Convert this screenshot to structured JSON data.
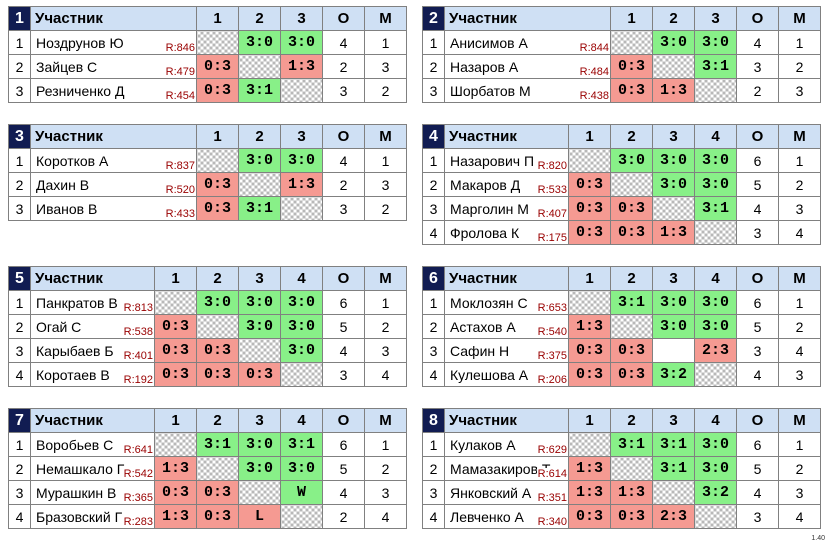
{
  "columns": {
    "participant": "Участник",
    "points": "О",
    "place": "М"
  },
  "version": "1.40",
  "groups": [
    {
      "num": "1",
      "headers": [
        "1",
        "2",
        "3"
      ],
      "rows": [
        {
          "n": "1",
          "name": "Ноздрунов Ю",
          "rating": "R:846",
          "cells": [
            {
              "t": "",
              "k": "x"
            },
            {
              "t": "3:0",
              "k": "w"
            },
            {
              "t": "3:0",
              "k": "w"
            }
          ],
          "o": "4",
          "m": "1"
        },
        {
          "n": "2",
          "name": "Зайцев С",
          "rating": "R:479",
          "cells": [
            {
              "t": "0:3",
              "k": "l"
            },
            {
              "t": "",
              "k": "x"
            },
            {
              "t": "1:3",
              "k": "l"
            }
          ],
          "o": "2",
          "m": "3"
        },
        {
          "n": "3",
          "name": "Резниченко Д",
          "rating": "R:454",
          "cells": [
            {
              "t": "0:3",
              "k": "l"
            },
            {
              "t": "3:1",
              "k": "w"
            },
            {
              "t": "",
              "k": "x"
            }
          ],
          "o": "3",
          "m": "2"
        }
      ]
    },
    {
      "num": "2",
      "headers": [
        "1",
        "2",
        "3"
      ],
      "rows": [
        {
          "n": "1",
          "name": "Анисимов А",
          "rating": "R:844",
          "cells": [
            {
              "t": "",
              "k": "x"
            },
            {
              "t": "3:0",
              "k": "w"
            },
            {
              "t": "3:0",
              "k": "w"
            }
          ],
          "o": "4",
          "m": "1"
        },
        {
          "n": "2",
          "name": "Назаров А",
          "rating": "R:484",
          "cells": [
            {
              "t": "0:3",
              "k": "l"
            },
            {
              "t": "",
              "k": "x"
            },
            {
              "t": "3:1",
              "k": "w"
            }
          ],
          "o": "3",
          "m": "2"
        },
        {
          "n": "3",
          "name": "Шорбатов М",
          "rating": "R:438",
          "cells": [
            {
              "t": "0:3",
              "k": "l"
            },
            {
              "t": "1:3",
              "k": "l"
            },
            {
              "t": "",
              "k": "x"
            }
          ],
          "o": "2",
          "m": "3"
        }
      ]
    },
    {
      "num": "3",
      "headers": [
        "1",
        "2",
        "3"
      ],
      "rows": [
        {
          "n": "1",
          "name": "Коротков А",
          "rating": "R:837",
          "cells": [
            {
              "t": "",
              "k": "x"
            },
            {
              "t": "3:0",
              "k": "w"
            },
            {
              "t": "3:0",
              "k": "w"
            }
          ],
          "o": "4",
          "m": "1"
        },
        {
          "n": "2",
          "name": "Дахин В",
          "rating": "R:520",
          "cells": [
            {
              "t": "0:3",
              "k": "l"
            },
            {
              "t": "",
              "k": "x"
            },
            {
              "t": "1:3",
              "k": "l"
            }
          ],
          "o": "2",
          "m": "3"
        },
        {
          "n": "3",
          "name": "Иванов В",
          "rating": "R:433",
          "cells": [
            {
              "t": "0:3",
              "k": "l"
            },
            {
              "t": "3:1",
              "k": "w"
            },
            {
              "t": "",
              "k": "x"
            }
          ],
          "o": "3",
          "m": "2"
        }
      ]
    },
    {
      "num": "4",
      "headers": [
        "1",
        "2",
        "3",
        "4"
      ],
      "rows": [
        {
          "n": "1",
          "name": "Назарович П",
          "rating": "R:820",
          "cells": [
            {
              "t": "",
              "k": "x"
            },
            {
              "t": "3:0",
              "k": "w"
            },
            {
              "t": "3:0",
              "k": "w"
            },
            {
              "t": "3:0",
              "k": "w"
            }
          ],
          "o": "6",
          "m": "1"
        },
        {
          "n": "2",
          "name": "Макаров Д",
          "rating": "R:533",
          "cells": [
            {
              "t": "0:3",
              "k": "l"
            },
            {
              "t": "",
              "k": "x"
            },
            {
              "t": "3:0",
              "k": "w"
            },
            {
              "t": "3:0",
              "k": "w"
            }
          ],
          "o": "5",
          "m": "2"
        },
        {
          "n": "3",
          "name": "Марголин М",
          "rating": "R:407",
          "cells": [
            {
              "t": "0:3",
              "k": "l"
            },
            {
              "t": "0:3",
              "k": "l"
            },
            {
              "t": "",
              "k": "x"
            },
            {
              "t": "3:1",
              "k": "w"
            }
          ],
          "o": "4",
          "m": "3"
        },
        {
          "n": "4",
          "name": "Фролова К",
          "rating": "R:175",
          "cells": [
            {
              "t": "0:3",
              "k": "l"
            },
            {
              "t": "0:3",
              "k": "l"
            },
            {
              "t": "1:3",
              "k": "l"
            },
            {
              "t": "",
              "k": "x"
            }
          ],
          "o": "3",
          "m": "4"
        }
      ]
    },
    {
      "num": "5",
      "headers": [
        "1",
        "2",
        "3",
        "4"
      ],
      "rows": [
        {
          "n": "1",
          "name": "Панкратов В",
          "rating": "R:813",
          "cells": [
            {
              "t": "",
              "k": "x"
            },
            {
              "t": "3:0",
              "k": "w"
            },
            {
              "t": "3:0",
              "k": "w"
            },
            {
              "t": "3:0",
              "k": "w"
            }
          ],
          "o": "6",
          "m": "1"
        },
        {
          "n": "2",
          "name": "Огай С",
          "rating": "R:538",
          "cells": [
            {
              "t": "0:3",
              "k": "l"
            },
            {
              "t": "",
              "k": "x"
            },
            {
              "t": "3:0",
              "k": "w"
            },
            {
              "t": "3:0",
              "k": "w"
            }
          ],
          "o": "5",
          "m": "2"
        },
        {
          "n": "3",
          "name": "Карыбаев Б",
          "rating": "R:401",
          "cells": [
            {
              "t": "0:3",
              "k": "l"
            },
            {
              "t": "0:3",
              "k": "l"
            },
            {
              "t": "",
              "k": "x"
            },
            {
              "t": "3:0",
              "k": "w"
            }
          ],
          "o": "4",
          "m": "3"
        },
        {
          "n": "4",
          "name": "Коротаев В",
          "rating": "R:192",
          "cells": [
            {
              "t": "0:3",
              "k": "l"
            },
            {
              "t": "0:3",
              "k": "l"
            },
            {
              "t": "0:3",
              "k": "l"
            },
            {
              "t": "",
              "k": "x"
            }
          ],
          "o": "3",
          "m": "4"
        }
      ]
    },
    {
      "num": "6",
      "headers": [
        "1",
        "2",
        "3",
        "4"
      ],
      "rows": [
        {
          "n": "1",
          "name": "Моклозян С",
          "rating": "R:653",
          "cells": [
            {
              "t": "",
              "k": "x"
            },
            {
              "t": "3:1",
              "k": "w"
            },
            {
              "t": "3:0",
              "k": "w"
            },
            {
              "t": "3:0",
              "k": "w"
            }
          ],
          "o": "6",
          "m": "1"
        },
        {
          "n": "2",
          "name": "Астахов А",
          "rating": "R:540",
          "cells": [
            {
              "t": "1:3",
              "k": "l"
            },
            {
              "t": "",
              "k": "x"
            },
            {
              "t": "3:0",
              "k": "w"
            },
            {
              "t": "3:0",
              "k": "w"
            }
          ],
          "o": "5",
          "m": "2"
        },
        {
          "n": "3",
          "name": "Сафин Н",
          "rating": "R:375",
          "cells": [
            {
              "t": "0:3",
              "k": "l"
            },
            {
              "t": "0:3",
              "k": "l"
            },
            {
              "t": "",
              "k": "e"
            },
            {
              "t": "2:3",
              "k": "l"
            }
          ],
          "o": "3",
          "m": "4"
        },
        {
          "n": "4",
          "name": "Кулешова А",
          "rating": "R:206",
          "cells": [
            {
              "t": "0:3",
              "k": "l"
            },
            {
              "t": "0:3",
              "k": "l"
            },
            {
              "t": "3:2",
              "k": "w"
            },
            {
              "t": "",
              "k": "x"
            }
          ],
          "o": "4",
          "m": "3"
        }
      ]
    },
    {
      "num": "7",
      "headers": [
        "1",
        "2",
        "3",
        "4"
      ],
      "rows": [
        {
          "n": "1",
          "name": "Воробьев С",
          "rating": "R:641",
          "cells": [
            {
              "t": "",
              "k": "x"
            },
            {
              "t": "3:1",
              "k": "w"
            },
            {
              "t": "3:0",
              "k": "w"
            },
            {
              "t": "3:1",
              "k": "w"
            }
          ],
          "o": "6",
          "m": "1"
        },
        {
          "n": "2",
          "name": "Немашкало Г",
          "rating": "R:542",
          "cells": [
            {
              "t": "1:3",
              "k": "l"
            },
            {
              "t": "",
              "k": "x"
            },
            {
              "t": "3:0",
              "k": "w"
            },
            {
              "t": "3:0",
              "k": "w"
            }
          ],
          "o": "5",
          "m": "2"
        },
        {
          "n": "3",
          "name": "Мурашкин В",
          "rating": "R:365",
          "cells": [
            {
              "t": "0:3",
              "k": "l"
            },
            {
              "t": "0:3",
              "k": "l"
            },
            {
              "t": "",
              "k": "x"
            },
            {
              "t": "W",
              "k": "w"
            }
          ],
          "o": "4",
          "m": "3"
        },
        {
          "n": "4",
          "name": "Бразовский Г",
          "rating": "R:283",
          "cells": [
            {
              "t": "1:3",
              "k": "l"
            },
            {
              "t": "0:3",
              "k": "l"
            },
            {
              "t": "L",
              "k": "l"
            },
            {
              "t": "",
              "k": "x"
            }
          ],
          "o": "2",
          "m": "4"
        }
      ]
    },
    {
      "num": "8",
      "headers": [
        "1",
        "2",
        "3",
        "4"
      ],
      "rows": [
        {
          "n": "1",
          "name": "Кулаков А",
          "rating": "R:629",
          "cells": [
            {
              "t": "",
              "k": "x"
            },
            {
              "t": "3:1",
              "k": "w"
            },
            {
              "t": "3:1",
              "k": "w"
            },
            {
              "t": "3:0",
              "k": "w"
            }
          ],
          "o": "6",
          "m": "1"
        },
        {
          "n": "2",
          "name": "Мамазакиров Т",
          "rating": "R:614",
          "cells": [
            {
              "t": "1:3",
              "k": "l"
            },
            {
              "t": "",
              "k": "x"
            },
            {
              "t": "3:1",
              "k": "w"
            },
            {
              "t": "3:0",
              "k": "w"
            }
          ],
          "o": "5",
          "m": "2"
        },
        {
          "n": "3",
          "name": "Янковский А",
          "rating": "R:351",
          "cells": [
            {
              "t": "1:3",
              "k": "l"
            },
            {
              "t": "1:3",
              "k": "l"
            },
            {
              "t": "",
              "k": "x"
            },
            {
              "t": "3:2",
              "k": "w"
            }
          ],
          "o": "4",
          "m": "3"
        },
        {
          "n": "4",
          "name": "Левченко А",
          "rating": "R:340",
          "cells": [
            {
              "t": "0:3",
              "k": "l"
            },
            {
              "t": "0:3",
              "k": "l"
            },
            {
              "t": "2:3",
              "k": "l"
            },
            {
              "t": "",
              "k": "x"
            }
          ],
          "o": "3",
          "m": "4"
        }
      ]
    }
  ]
}
